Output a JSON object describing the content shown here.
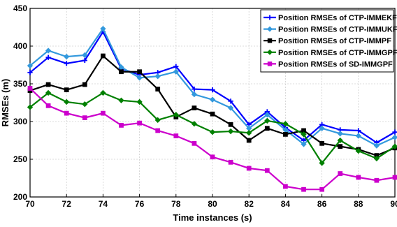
{
  "chart_data": {
    "type": "line",
    "xlabel": "Time instances (s)",
    "ylabel": "RMSEs (m)",
    "xlim": [
      70,
      90
    ],
    "ylim": [
      200,
      450
    ],
    "xticks": [
      70,
      72,
      74,
      76,
      78,
      80,
      82,
      84,
      86,
      88,
      90
    ],
    "yticks": [
      200,
      250,
      300,
      350,
      400,
      450
    ],
    "grid": true,
    "legend_position": "top-right",
    "x": [
      70,
      71,
      72,
      73,
      74,
      75,
      76,
      77,
      78,
      79,
      80,
      81,
      82,
      83,
      84,
      85,
      86,
      87,
      88,
      89,
      90
    ],
    "series": [
      {
        "name": "Position RMSEs of CTP-IMMEKF",
        "color": "#0000ff",
        "marker": "plus",
        "values": [
          365,
          385,
          377,
          381,
          419,
          370,
          362,
          365,
          373,
          343,
          342,
          327,
          296,
          313,
          292,
          275,
          296,
          289,
          288,
          272,
          286
        ]
      },
      {
        "name": "Position RMSEs of CTP-IMMUKF",
        "color": "#3399dd",
        "marker": "diamond",
        "values": [
          374,
          394,
          386,
          388,
          423,
          372,
          358,
          360,
          366,
          336,
          329,
          318,
          291,
          309,
          289,
          270,
          291,
          284,
          281,
          268,
          279
        ]
      },
      {
        "name": "Position RMSEs of CTP-IMMPF",
        "color": "#000000",
        "marker": "square",
        "values": [
          341,
          349,
          342,
          349,
          387,
          366,
          366,
          343,
          306,
          318,
          310,
          296,
          275,
          291,
          283,
          288,
          271,
          267,
          263,
          255,
          265
        ]
      },
      {
        "name": "Position RMSEs of CTP-IMMGPF",
        "color": "#008000",
        "marker": "diamond",
        "values": [
          319,
          338,
          326,
          323,
          338,
          328,
          326,
          302,
          309,
          297,
          286,
          287,
          285,
          301,
          297,
          283,
          245,
          275,
          261,
          251,
          267
        ]
      },
      {
        "name": "Position RMSEs of SD-IMMGPF",
        "color": "#cc00cc",
        "marker": "square",
        "values": [
          344,
          321,
          311,
          305,
          311,
          295,
          298,
          288,
          281,
          271,
          253,
          246,
          238,
          235,
          214,
          210,
          210,
          231,
          226,
          222,
          226
        ]
      }
    ]
  }
}
